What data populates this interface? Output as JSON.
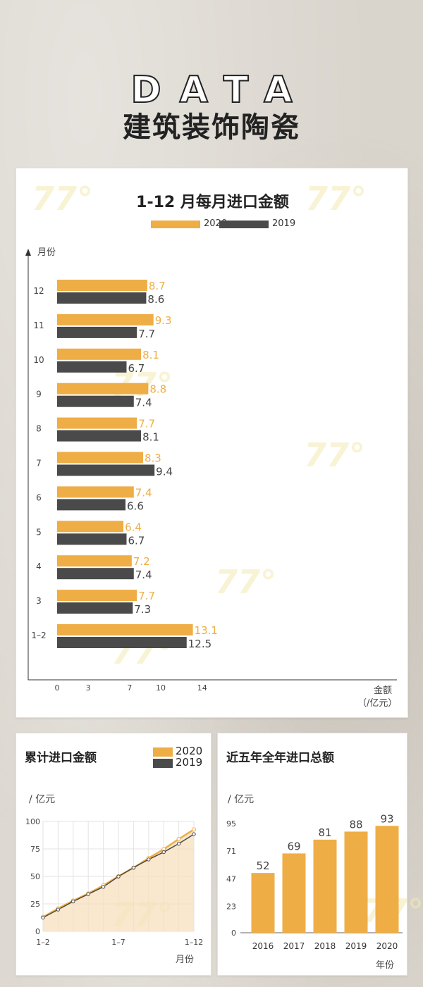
{
  "header": {
    "data_word": "DATA",
    "title": "建筑装饰陶瓷"
  },
  "watermark": "77°",
  "colors": {
    "y2020": "#efad45",
    "y2019": "#4a4a4a",
    "grid": "#e3e3e3"
  },
  "chart_data": [
    {
      "type": "bar",
      "orientation": "horizontal",
      "title": "1-12 月每月进口金额",
      "ylabel": "月份",
      "xlabel": "金额",
      "xunit": "（/亿元）",
      "categories": [
        "12",
        "11",
        "10",
        "9",
        "8",
        "7",
        "6",
        "5",
        "4",
        "3",
        "1–2"
      ],
      "xticks": [
        0,
        3,
        7,
        10,
        14
      ],
      "legend_position": "top-center",
      "series": [
        {
          "name": "2020",
          "values": [
            8.7,
            9.3,
            8.1,
            8.8,
            7.7,
            8.3,
            7.4,
            6.4,
            7.2,
            7.7,
            13.1
          ]
        },
        {
          "name": "2019",
          "values": [
            8.6,
            7.7,
            6.7,
            7.4,
            8.1,
            9.4,
            6.6,
            6.7,
            7.4,
            7.3,
            12.5
          ]
        }
      ]
    },
    {
      "type": "line",
      "title": "累计进口金额",
      "ylabel": "/ 亿元",
      "xlabel": "月份",
      "ylim": [
        0,
        100
      ],
      "yticks": [
        0,
        25,
        50,
        75,
        100
      ],
      "x": [
        "1–2",
        "3",
        "4",
        "5",
        "6",
        "1–7",
        "8",
        "9",
        "10",
        "11",
        "1–12"
      ],
      "xtick_labels": [
        "1–2",
        "1–7",
        "1–12"
      ],
      "legend_position": "top-right",
      "series": [
        {
          "name": "2020",
          "values": [
            13.1,
            20.8,
            28.0,
            34.4,
            41.8,
            50.1,
            57.8,
            66.6,
            74.7,
            84.0,
            92.7
          ]
        },
        {
          "name": "2019",
          "values": [
            12.5,
            19.8,
            27.2,
            33.9,
            40.5,
            49.9,
            58.0,
            65.4,
            72.1,
            79.8,
            88.4
          ]
        }
      ]
    },
    {
      "type": "bar",
      "title": "近五年全年进口总额",
      "ylabel": "/ 亿元",
      "xlabel": "年份",
      "ylim": [
        0,
        95
      ],
      "yticks": [
        0,
        23,
        47,
        71,
        95
      ],
      "categories": [
        "2016",
        "2017",
        "2018",
        "2019",
        "2020"
      ],
      "values": [
        52,
        69,
        81,
        88,
        93
      ]
    }
  ]
}
